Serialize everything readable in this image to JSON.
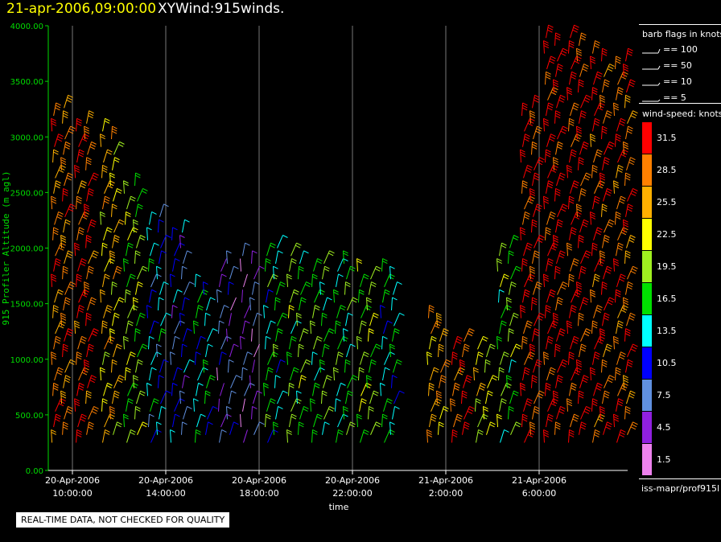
{
  "header": {
    "datetime": "21-apr-2006,09:00:00",
    "title": "XYWind:915winds."
  },
  "notice": "REAL-TIME DATA, NOT CHECKED FOR QUALITY",
  "footer_id": "iss-mapr/prof915l",
  "barb_legend": {
    "title": "barb flags in knots",
    "entries": [
      "== 100",
      "== 50",
      "== 10",
      "== 5"
    ]
  },
  "speed_legend": {
    "title": "wind-speed: knots",
    "bins": [
      {
        "label": "31.5",
        "color": "#ff0000"
      },
      {
        "label": "28.5",
        "color": "#ff8000"
      },
      {
        "label": "25.5",
        "color": "#ffb000"
      },
      {
        "label": "22.5",
        "color": "#ffff00"
      },
      {
        "label": "19.5",
        "color": "#a0f020"
      },
      {
        "label": "16.5",
        "color": "#00e000"
      },
      {
        "label": "13.5",
        "color": "#00ffff"
      },
      {
        "label": "10.5",
        "color": "#0000ff"
      },
      {
        "label": "7.5",
        "color": "#6090e0"
      },
      {
        "label": "4.5",
        "color": "#9020e0"
      },
      {
        "label": "1.5",
        "color": "#ee82ee"
      }
    ]
  },
  "chart_data": {
    "type": "wind-barb",
    "ylabel": "915 Profiler Altitude (m agl)",
    "xlabel": "time",
    "ylim": [
      0,
      4000
    ],
    "yticks": [
      "4000.00",
      "3500.00",
      "3000.00",
      "2500.00",
      "2000.00",
      "1500.00",
      "1000.00",
      "500.00",
      "0.00"
    ],
    "xticks": [
      {
        "date": "20-Apr-2006",
        "time": "10:00:00"
      },
      {
        "date": "20-Apr-2006",
        "time": "14:00:00"
      },
      {
        "date": "20-Apr-2006",
        "time": "18:00:00"
      },
      {
        "date": "20-Apr-2006",
        "time": "22:00:00"
      },
      {
        "date": "21-Apr-2006",
        "time": "2:00:00"
      },
      {
        "date": "21-Apr-2006",
        "time": "6:00:00"
      }
    ],
    "grid": true,
    "profiles": [
      {
        "hours": 9.4,
        "top_m": 3300,
        "speed_knots": 28
      },
      {
        "hours": 10.4,
        "top_m": 3150,
        "speed_knots": 30
      },
      {
        "hours": 11.5,
        "top_m": 3050,
        "speed_knots": 24
      },
      {
        "hours": 12.5,
        "top_m": 2600,
        "speed_knots": 19
      },
      {
        "hours": 13.5,
        "top_m": 2300,
        "speed_knots": 12
      },
      {
        "hours": 14.5,
        "top_m": 2200,
        "speed_knots": 9
      },
      {
        "hours": 15.5,
        "top_m": 1700,
        "speed_knots": 14
      },
      {
        "hours": 16.5,
        "top_m": 1900,
        "speed_knots": 6
      },
      {
        "hours": 17.5,
        "top_m": 1950,
        "speed_knots": 5
      },
      {
        "hours": 18.5,
        "top_m": 2000,
        "speed_knots": 15
      },
      {
        "hours": 19.5,
        "top_m": 1950,
        "speed_knots": 18
      },
      {
        "hours": 20.5,
        "top_m": 1900,
        "speed_knots": 17
      },
      {
        "hours": 21.5,
        "top_m": 1900,
        "speed_knots": 16
      },
      {
        "hours": 22.5,
        "top_m": 1850,
        "speed_knots": 19
      },
      {
        "hours": 23.5,
        "top_m": 1800,
        "speed_knots": 14
      },
      {
        "hours": 25.5,
        "top_m": 1400,
        "speed_knots": 26
      },
      {
        "hours": 26.5,
        "top_m": 1200,
        "speed_knots": 30
      },
      {
        "hours": 27.5,
        "top_m": 1150,
        "speed_knots": 22
      },
      {
        "hours": 28.5,
        "top_m": 2000,
        "speed_knots": 18
      },
      {
        "hours": 29.5,
        "top_m": 3300,
        "speed_knots": 31
      },
      {
        "hours": 30.5,
        "top_m": 3950,
        "speed_knots": 32
      },
      {
        "hours": 31.5,
        "top_m": 3900,
        "speed_knots": 31
      },
      {
        "hours": 32.5,
        "top_m": 3800,
        "speed_knots": 30
      },
      {
        "hours": 33.5,
        "top_m": 3700,
        "speed_knots": 29
      }
    ]
  }
}
